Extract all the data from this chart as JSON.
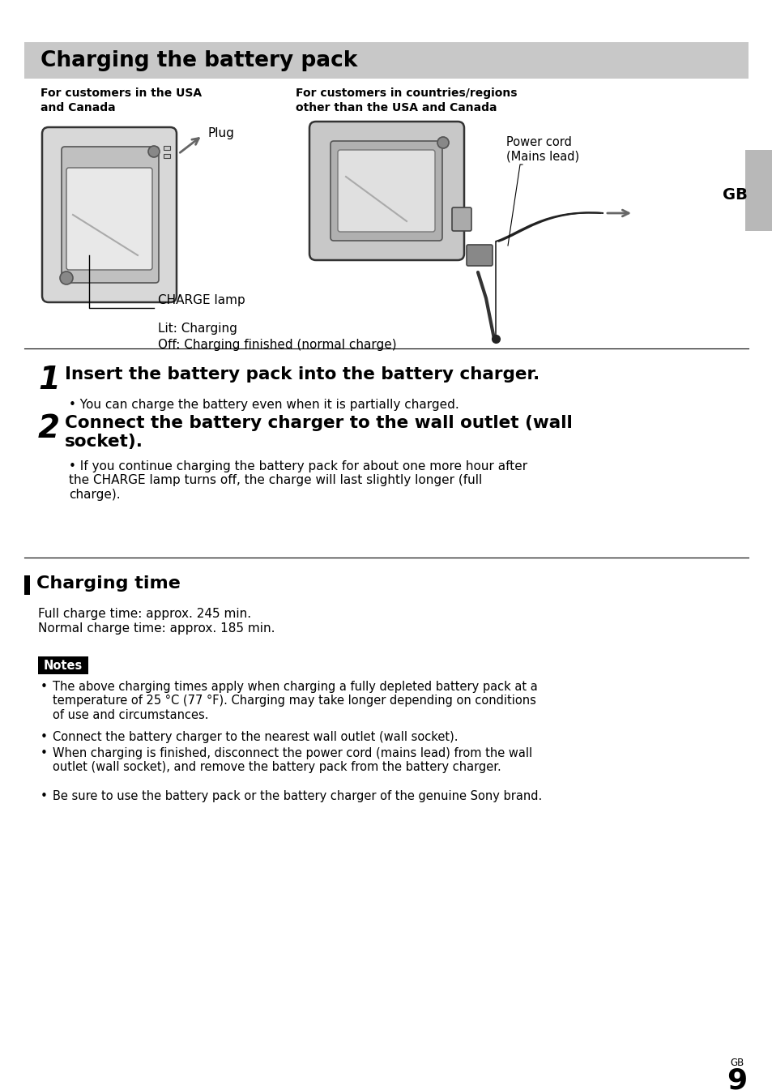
{
  "bg_color": "#ffffff",
  "title_bg_color": "#c8c8c8",
  "title_text": "Charging the battery pack",
  "col1_header": "For customers in the USA\nand Canada",
  "col2_header": "For customers in countries/regions\nother than the USA and Canada",
  "charge_lamp_text": "CHARGE lamp",
  "lit_text": "Lit: Charging",
  "off_text": "Off: Charging finished (normal charge)",
  "plug_label": "Plug",
  "power_cord_label": "Power cord\n(Mains lead)",
  "gb_label": "GB",
  "step1_num": "1",
  "step1_text": "Insert the battery pack into the battery charger.",
  "step1_bullet": "You can charge the battery even when it is partially charged.",
  "step2_num": "2",
  "step2_text": "Connect the battery charger to the wall outlet (wall\nsocket).",
  "step2_bullet": "If you continue charging the battery pack for about one more hour after\nthe CHARGE lamp turns off, the charge will last slightly longer (full\ncharge).",
  "section_title": "Charging time",
  "full_charge": "Full charge time: approx. 245 min.",
  "normal_charge": "Normal charge time: approx. 185 min.",
  "notes_label": "Notes",
  "notes_bg": "#000000",
  "notes_fg": "#ffffff",
  "note1": "The above charging times apply when charging a fully depleted battery pack at a\ntemperature of 25 °C (77 °F). Charging may take longer depending on conditions\nof use and circumstances.",
  "note2": "Connect the battery charger to the nearest wall outlet (wall socket).",
  "note3": "When charging is finished, disconnect the power cord (mains lead) from the wall\noutlet (wall socket), and remove the battery pack from the battery charger.",
  "note4": "Be sure to use the battery pack or the battery charger of the genuine Sony brand.",
  "page_num": "9",
  "page_gb_small": "GB"
}
